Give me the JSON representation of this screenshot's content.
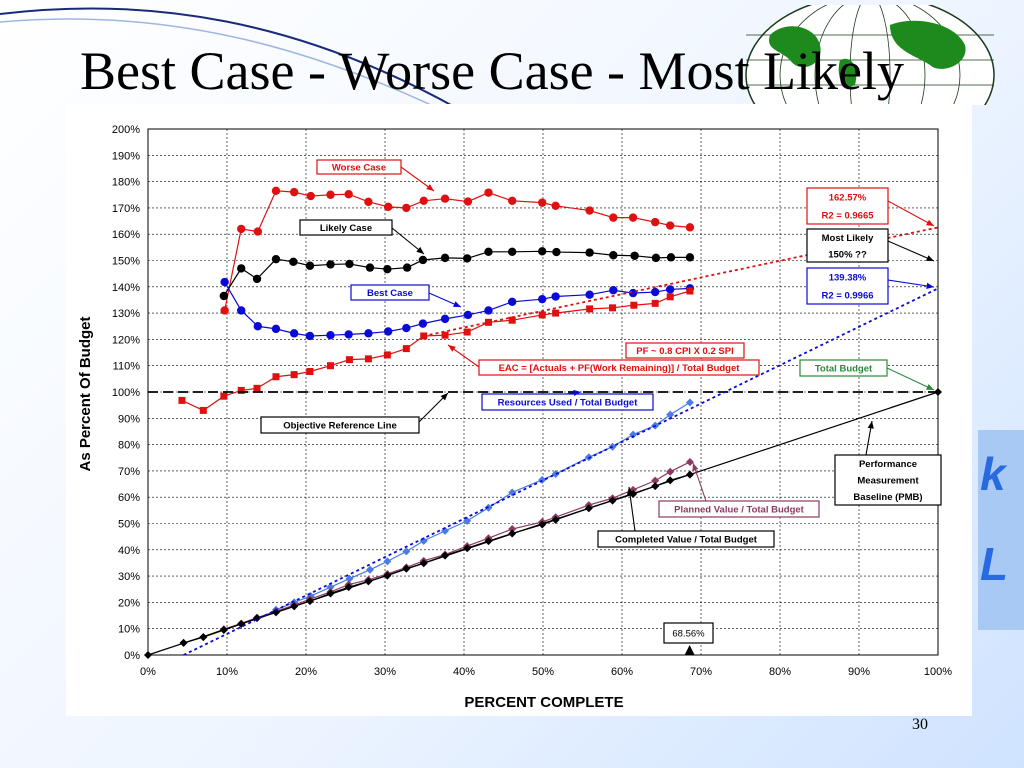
{
  "slide": {
    "title": "Best Case - Worse Case - Most Likely",
    "page_number": "30"
  },
  "colors": {
    "red": "#e01010",
    "black": "#000000",
    "blue": "#0a0ad8",
    "lightblue": "#4a7be8",
    "purple": "#8b3a62",
    "green": "#2a8a3a"
  },
  "chart_data": {
    "type": "line",
    "xlabel": "PERCENT COMPLETE",
    "ylabel": "As Percent Of Budget",
    "xlim": [
      0,
      100
    ],
    "ylim": [
      0,
      200
    ],
    "x_ticks": [
      "0%",
      "10%",
      "20%",
      "30%",
      "40%",
      "50%",
      "60%",
      "70%",
      "80%",
      "90%",
      "100%"
    ],
    "y_ticks": [
      "0%",
      "10%",
      "20%",
      "30%",
      "40%",
      "50%",
      "60%",
      "70%",
      "80%",
      "90%",
      "100%",
      "110%",
      "120%",
      "130%",
      "140%",
      "150%",
      "160%",
      "170%",
      "180%",
      "190%",
      "200%"
    ],
    "grid": true,
    "series": [
      {
        "name": "Worse Case",
        "color": "#e01010",
        "marker": "circle",
        "dashed": false,
        "points": [
          [
            9.7,
            131
          ],
          [
            11.8,
            162
          ],
          [
            13.9,
            161
          ],
          [
            16.2,
            176.5
          ],
          [
            18.5,
            176
          ],
          [
            20.6,
            174.5
          ],
          [
            23.1,
            175
          ],
          [
            25.4,
            175.2
          ],
          [
            27.9,
            172.3
          ],
          [
            30.4,
            170.4
          ],
          [
            32.7,
            170
          ],
          [
            34.9,
            172.7
          ],
          [
            37.6,
            173.5
          ],
          [
            40.5,
            172.4
          ],
          [
            43.1,
            175.8
          ],
          [
            46.1,
            172.7
          ],
          [
            49.9,
            172
          ],
          [
            51.6,
            170.8
          ],
          [
            55.9,
            169
          ],
          [
            58.9,
            166.3
          ],
          [
            61.4,
            166.3
          ],
          [
            64.2,
            164.6
          ],
          [
            66.1,
            163.3
          ],
          [
            68.6,
            162.6
          ]
        ]
      },
      {
        "name": "Likely Case",
        "color": "#000000",
        "marker": "circle",
        "dashed": false,
        "points": [
          [
            9.6,
            136.5
          ],
          [
            11.8,
            147
          ],
          [
            13.8,
            143
          ],
          [
            16.2,
            150.5
          ],
          [
            18.4,
            149.5
          ],
          [
            20.5,
            148
          ],
          [
            23.1,
            148.5
          ],
          [
            25.5,
            148.7
          ],
          [
            28.1,
            147.3
          ],
          [
            30.3,
            146.7
          ],
          [
            32.8,
            147.3
          ],
          [
            34.8,
            150.2
          ],
          [
            37.6,
            151
          ],
          [
            40.4,
            150.8
          ],
          [
            43.1,
            153.3
          ],
          [
            46.1,
            153.3
          ],
          [
            49.9,
            153.5
          ],
          [
            51.7,
            153.2
          ],
          [
            55.9,
            153
          ],
          [
            58.9,
            152
          ],
          [
            61.6,
            151.8
          ],
          [
            64.3,
            151
          ],
          [
            66.2,
            151.2
          ],
          [
            68.6,
            151.2
          ]
        ]
      },
      {
        "name": "Best Case",
        "color": "#0a0ad8",
        "marker": "circle",
        "dashed": false,
        "points": [
          [
            9.7,
            141.8
          ],
          [
            11.8,
            131
          ],
          [
            13.9,
            125
          ],
          [
            16.2,
            124
          ],
          [
            18.5,
            122.3
          ],
          [
            20.5,
            121.3
          ],
          [
            23.1,
            121.6
          ],
          [
            25.4,
            121.9
          ],
          [
            27.9,
            122.3
          ],
          [
            30.4,
            123
          ],
          [
            32.7,
            124.3
          ],
          [
            34.8,
            126
          ],
          [
            37.6,
            127.8
          ],
          [
            40.5,
            129.3
          ],
          [
            43.1,
            131
          ],
          [
            46.1,
            134.3
          ],
          [
            49.9,
            135.3
          ],
          [
            51.6,
            136.3
          ],
          [
            55.9,
            137
          ],
          [
            58.9,
            138.7
          ],
          [
            61.4,
            137.6
          ],
          [
            64.2,
            138
          ],
          [
            66.1,
            139
          ],
          [
            68.6,
            139.4
          ]
        ]
      },
      {
        "name": "EAC",
        "color": "#e01010",
        "marker": "square",
        "dashed": false,
        "points": [
          [
            4.3,
            96.8
          ],
          [
            7,
            93
          ],
          [
            9.6,
            98.4
          ],
          [
            11.8,
            100.6
          ],
          [
            13.8,
            101.4
          ],
          [
            16.2,
            105.8
          ],
          [
            18.5,
            106.6
          ],
          [
            20.5,
            107.8
          ],
          [
            23.1,
            110
          ],
          [
            25.5,
            112.3
          ],
          [
            27.9,
            112.6
          ],
          [
            30.3,
            114.1
          ],
          [
            32.7,
            116.5
          ],
          [
            34.9,
            121.3
          ],
          [
            37.6,
            121.6
          ],
          [
            40.4,
            122.8
          ],
          [
            43.1,
            126.5
          ],
          [
            46.1,
            127.3
          ],
          [
            49.9,
            129.3
          ],
          [
            51.6,
            130
          ],
          [
            55.9,
            131.6
          ],
          [
            58.8,
            132
          ],
          [
            61.5,
            133
          ],
          [
            64.2,
            133.7
          ],
          [
            66.1,
            136.2
          ],
          [
            68.6,
            138.4
          ]
        ]
      },
      {
        "name": "Resources Used / Total Budget",
        "color": "#4a7be8",
        "marker": "diamond",
        "dashed": false,
        "points": [
          [
            16.2,
            17.2
          ],
          [
            18.5,
            20
          ],
          [
            20.6,
            22.4
          ],
          [
            23.1,
            25.8
          ],
          [
            25.5,
            29
          ],
          [
            28.1,
            32.4
          ],
          [
            30.3,
            35.6
          ],
          [
            32.7,
            39.4
          ],
          [
            34.9,
            43.4
          ],
          [
            37.6,
            47.2
          ],
          [
            40.4,
            51
          ],
          [
            43.1,
            56
          ],
          [
            46.1,
            61.8
          ],
          [
            49.9,
            66.6
          ],
          [
            51.6,
            68.8
          ],
          [
            55.8,
            75.2
          ],
          [
            58.8,
            79.2
          ],
          [
            61.4,
            83.8
          ],
          [
            64.2,
            87.2
          ],
          [
            66.1,
            91.4
          ],
          [
            68.6,
            96
          ]
        ]
      },
      {
        "name": "Planned Value / Total Budget",
        "color": "#8b3a62",
        "marker": "diamond",
        "dashed": false,
        "points": [
          [
            4.5,
            4.6
          ],
          [
            7,
            6.8
          ],
          [
            9.6,
            9.8
          ],
          [
            11.8,
            12
          ],
          [
            13.8,
            14.2
          ],
          [
            16.2,
            16.6
          ],
          [
            18.5,
            19
          ],
          [
            20.5,
            21.2
          ],
          [
            23.1,
            24
          ],
          [
            25.4,
            26.8
          ],
          [
            27.9,
            28.6
          ],
          [
            30.3,
            30.8
          ],
          [
            32.7,
            33.3
          ],
          [
            34.9,
            35.8
          ],
          [
            37.6,
            38.2
          ],
          [
            40.4,
            41.4
          ],
          [
            43.1,
            44.4
          ],
          [
            46.1,
            47.9
          ],
          [
            49.9,
            50.6
          ],
          [
            51.6,
            52.4
          ],
          [
            55.8,
            57
          ],
          [
            58.8,
            59.6
          ],
          [
            61.4,
            62.8
          ],
          [
            64.2,
            66.3
          ],
          [
            66.1,
            69.7
          ],
          [
            68.6,
            73.4
          ]
        ]
      },
      {
        "name": "Completed Value / Total Budget",
        "color": "#000000",
        "marker": "diamond",
        "dashed": false,
        "points": [
          [
            4.5,
            4.6
          ],
          [
            7,
            6.8
          ],
          [
            9.6,
            9.5
          ],
          [
            11.8,
            11.8
          ],
          [
            13.8,
            14
          ],
          [
            16.2,
            16.2
          ],
          [
            18.5,
            18.5
          ],
          [
            20.5,
            20.5
          ],
          [
            23.1,
            23.4
          ],
          [
            25.4,
            25.8
          ],
          [
            27.9,
            28
          ],
          [
            30.3,
            30.2
          ],
          [
            32.7,
            32.8
          ],
          [
            34.9,
            34.9
          ],
          [
            37.6,
            37.8
          ],
          [
            40.4,
            40.6
          ],
          [
            43.1,
            43.3
          ],
          [
            46.1,
            46.2
          ],
          [
            49.9,
            49.6
          ],
          [
            51.6,
            51.4
          ],
          [
            55.8,
            55.8
          ],
          [
            58.8,
            58.7
          ],
          [
            61.4,
            61.2
          ],
          [
            64.2,
            64.2
          ],
          [
            66.1,
            66.4
          ],
          [
            68.6,
            68.6
          ]
        ]
      },
      {
        "name": "Performance Measurement Baseline (PMB)",
        "color": "#000000",
        "marker": "diamond",
        "dashed": false,
        "points": [
          [
            0,
            0
          ],
          [
            100,
            100
          ]
        ]
      },
      {
        "name": "Objective Reference Line",
        "color": "#000000",
        "marker": "none",
        "dashed": true,
        "points": [
          [
            0,
            100
          ],
          [
            100,
            100
          ]
        ]
      },
      {
        "name": "Worse Case trend",
        "color": "#e01010",
        "marker": "none",
        "dashed": true,
        "points": [
          [
            34.9,
            121.3
          ],
          [
            100,
            162.57
          ]
        ]
      },
      {
        "name": "Best Case trend",
        "color": "#0a0ad8",
        "marker": "none",
        "dashed": true,
        "points": [
          [
            4.5,
            0
          ],
          [
            100,
            139.38
          ]
        ]
      }
    ],
    "annotations": [
      {
        "id": "worse",
        "text": "Worse Case",
        "color": "#e01010"
      },
      {
        "id": "likely",
        "text": "Likely Case",
        "color": "#000000"
      },
      {
        "id": "best",
        "text": "Best Case",
        "color": "#0a0ad8"
      },
      {
        "id": "r1a",
        "text": "162.57%",
        "color": "#e01010"
      },
      {
        "id": "r1b",
        "text": "R2 = 0.9665",
        "color": "#e01010"
      },
      {
        "id": "ml1",
        "text": "Most Likely",
        "color": "#000000"
      },
      {
        "id": "ml2",
        "text": "150% ??",
        "color": "#000000"
      },
      {
        "id": "r2a",
        "text": "139.38%",
        "color": "#0a0ad8"
      },
      {
        "id": "r2b",
        "text": "R2 = 0.9966",
        "color": "#0a0ad8"
      },
      {
        "id": "pf",
        "text": "PF ~ 0.8 CPI X 0.2 SPI",
        "color": "#e01010"
      },
      {
        "id": "eac",
        "text": "EAC = [Actuals + PF(Work Remaining)] / Total Budget",
        "color": "#e01010"
      },
      {
        "id": "total",
        "text": "Total Budget",
        "color": "#2a8a3a"
      },
      {
        "id": "res",
        "text": "Resources Used / Total Budget",
        "color": "#0a0ad8"
      },
      {
        "id": "obj",
        "text": "Objective Reference Line",
        "color": "#000000"
      },
      {
        "id": "pmb1",
        "text": "Performance",
        "color": "#000000"
      },
      {
        "id": "pmb2",
        "text": "Measurement",
        "color": "#000000"
      },
      {
        "id": "pmb3",
        "text": "Baseline (PMB)",
        "color": "#000000"
      },
      {
        "id": "pv",
        "text": "Planned Value / Total Budget",
        "color": "#8b3a62"
      },
      {
        "id": "cv",
        "text": "Completed Value / Total Budget",
        "color": "#000000"
      },
      {
        "id": "cur",
        "text": "68.56%",
        "color": "#000000"
      }
    ]
  }
}
